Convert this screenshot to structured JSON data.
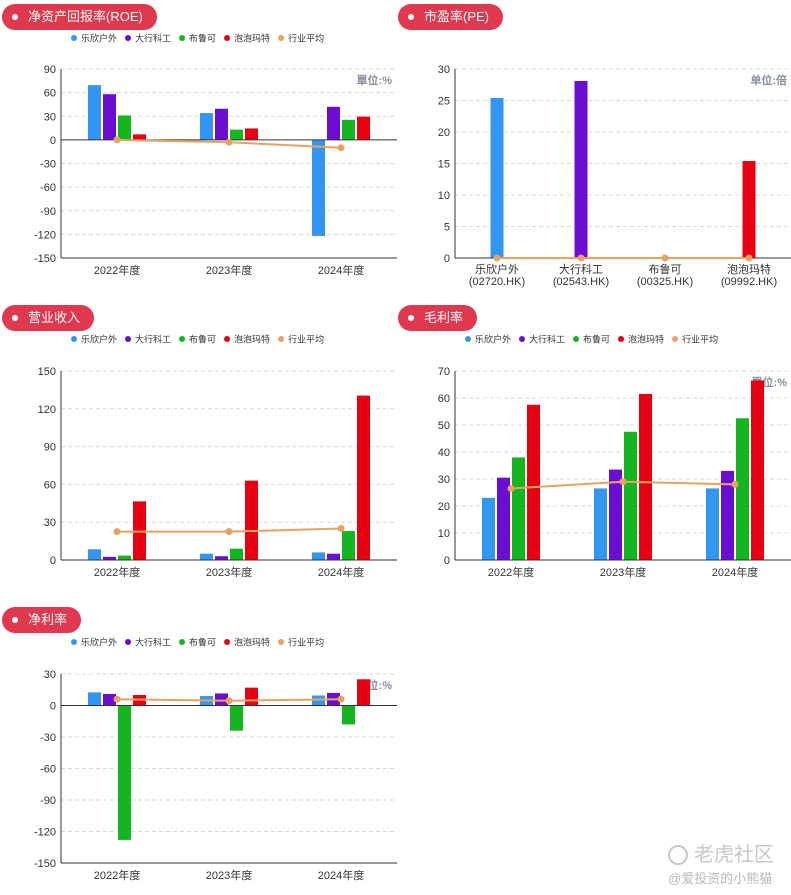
{
  "colors": {
    "series": [
      "#3396f0",
      "#6a0fd1",
      "#13b61f",
      "#e60012"
    ],
    "average": "#e8a262",
    "badge": "#e0394f",
    "unit": "#8a8fa3"
  },
  "chart_data": [
    {
      "id": "roe",
      "type": "bar",
      "title": "净资产回报率(ROE)",
      "unit_label": "單位:%",
      "categories": [
        "2022年度",
        "2023年度",
        "2024年度"
      ],
      "series": [
        {
          "name": "乐欣户外",
          "values": [
            69.5,
            34,
            -122
          ]
        },
        {
          "name": "大行科工",
          "values": [
            58,
            39.5,
            42
          ]
        },
        {
          "name": "布鲁可",
          "values": [
            31,
            13,
            25.5
          ]
        },
        {
          "name": "泡泡玛特",
          "values": [
            7,
            14.5,
            29.5
          ]
        }
      ],
      "average": {
        "name": "行业平均",
        "values": [
          0,
          -3,
          -10
        ]
      },
      "yticks": [
        90,
        60,
        30,
        0,
        -30,
        -60,
        -90,
        -120,
        -150
      ],
      "ylim": [
        -150,
        90
      ],
      "grid": true,
      "legend": "top"
    },
    {
      "id": "pe",
      "type": "bar",
      "title": "市盈率(PE)",
      "unit_label": "单位:倍",
      "categories": [
        "乐欣户外",
        "大行科工",
        "布鲁可",
        "泡泡玛特"
      ],
      "category_codes": [
        "(02720.HK)",
        "(02543.HK)",
        "(00325.HK)",
        "(09992.HK)"
      ],
      "values": [
        25.4,
        28.1,
        0,
        15.4
      ],
      "average": {
        "values": [
          0,
          0,
          0,
          0
        ]
      },
      "yticks": [
        30,
        25,
        20,
        15,
        10,
        5,
        0
      ],
      "ylim": [
        0,
        30
      ],
      "grid": true
    },
    {
      "id": "revenue",
      "type": "bar",
      "title": "营业收入",
      "unit_label": "",
      "categories": [
        "2022年度",
        "2023年度",
        "2024年度"
      ],
      "series": [
        {
          "name": "乐欣户外",
          "values": [
            8.5,
            5,
            6
          ]
        },
        {
          "name": "大行科工",
          "values": [
            2.5,
            3,
            5
          ]
        },
        {
          "name": "布鲁可",
          "values": [
            3.5,
            9,
            23
          ]
        },
        {
          "name": "泡泡玛特",
          "values": [
            46.5,
            63,
            130.5
          ]
        }
      ],
      "average": {
        "name": "行业平均",
        "values": [
          22.5,
          22.5,
          25
        ]
      },
      "yticks": [
        150,
        120,
        90,
        60,
        30,
        0
      ],
      "ylim": [
        0,
        150
      ],
      "grid": true,
      "legend": "top"
    },
    {
      "id": "gross",
      "type": "bar",
      "title": "毛利率",
      "unit_label": "單位:%",
      "categories": [
        "2022年度",
        "2023年度",
        "2024年度"
      ],
      "series": [
        {
          "name": "乐欣户外",
          "values": [
            23,
            26.5,
            26.5
          ]
        },
        {
          "name": "大行科工",
          "values": [
            30.5,
            33.5,
            33
          ]
        },
        {
          "name": "布鲁可",
          "values": [
            38,
            47.5,
            52.5
          ]
        },
        {
          "name": "泡泡玛特",
          "values": [
            57.5,
            61.5,
            66.5
          ]
        }
      ],
      "average": {
        "name": "行业平均",
        "values": [
          26.5,
          29,
          28
        ]
      },
      "yticks": [
        70,
        60,
        50,
        40,
        30,
        20,
        10,
        0
      ],
      "ylim": [
        0,
        70
      ],
      "grid": true,
      "legend": "top"
    },
    {
      "id": "net",
      "type": "bar",
      "title": "净利率",
      "unit_label": "單位:%",
      "categories": [
        "2022年度",
        "2023年度",
        "2024年度"
      ],
      "series": [
        {
          "name": "乐欣户外",
          "values": [
            12.5,
            9,
            9.5
          ]
        },
        {
          "name": "大行科工",
          "values": [
            11,
            11.5,
            12
          ]
        },
        {
          "name": "布鲁可",
          "values": [
            -128,
            -24,
            -18
          ]
        },
        {
          "name": "泡泡玛特",
          "values": [
            10,
            17,
            25
          ]
        }
      ],
      "average": {
        "name": "行业平均",
        "values": [
          6,
          4.5,
          6
        ]
      },
      "yticks": [
        30,
        0,
        -30,
        -60,
        -90,
        -120,
        -150
      ],
      "ylim": [
        -150,
        30
      ],
      "grid": true,
      "legend": "top"
    }
  ],
  "watermark": {
    "brand": "老虎社区",
    "handle": "@爱投资的小熊猫"
  }
}
